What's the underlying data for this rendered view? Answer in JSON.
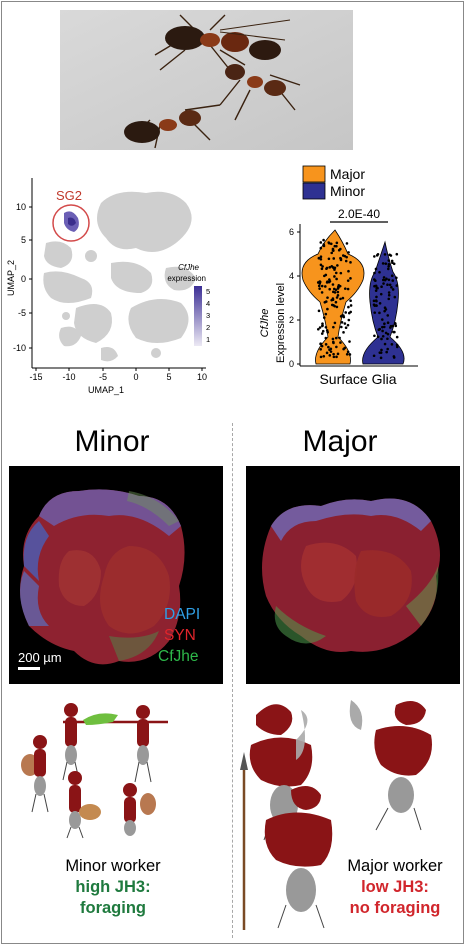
{
  "umap": {
    "cluster_label": "SG2",
    "x_axis_label": "UMAP_1",
    "y_axis_label": "UMAP_2",
    "x_ticks": [
      "-15",
      "-10",
      "-5",
      "0",
      "5",
      "10"
    ],
    "y_ticks": [
      "10",
      "5",
      "0",
      "-5",
      "-10"
    ],
    "colorbar_gene": "CfJhe",
    "colorbar_title": "expression",
    "colorbar_ticks": [
      "5",
      "4",
      "3",
      "2",
      "1"
    ]
  },
  "chart_data": {
    "type": "violin",
    "legend": [
      "Major",
      "Minor"
    ],
    "colors": {
      "Major": "#f7941d",
      "Minor": "#2e3192"
    },
    "significance": "2.0E-40",
    "ylabel_gene": "CfJhe",
    "ylabel": "Expression level",
    "xlabel": "Surface Glia",
    "yticks": [
      "0",
      "2",
      "4",
      "6"
    ],
    "ylim": [
      0,
      6
    ]
  },
  "panels": {
    "minor_title": "Minor",
    "major_title": "Major",
    "stain_dapi": "DAPI",
    "stain_syn": "SYN",
    "stain_cfjhe": "CfJhe",
    "scale_bar": "200 µm"
  },
  "captions": {
    "minor_line1": "Minor worker",
    "minor_line2": "high JH3:",
    "minor_line3": "foraging",
    "major_line1": "Major worker",
    "major_line2": "low JH3:",
    "major_line3": "no foraging"
  },
  "colors": {
    "dapi": "#2fa0e6",
    "syn": "#e0242b",
    "cfjhe": "#2eb84a",
    "foraging_green": "#1f7a3e",
    "no_foraging_red": "#d1262c",
    "ant_body": "#8a1416"
  }
}
